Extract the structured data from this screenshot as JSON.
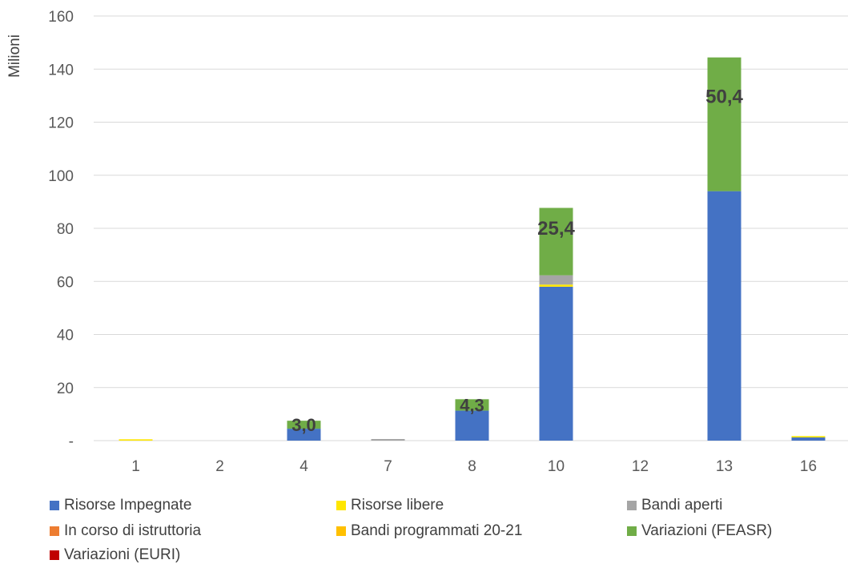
{
  "chart_data": {
    "type": "bar",
    "stacked": true,
    "ylabel": "Milioni",
    "xlabel": "",
    "ylim": [
      0,
      160
    ],
    "yticks": [
      {
        "value": 0,
        "label": "-"
      },
      {
        "value": 20,
        "label": "20"
      },
      {
        "value": 40,
        "label": "40"
      },
      {
        "value": 60,
        "label": "60"
      },
      {
        "value": 80,
        "label": "80"
      },
      {
        "value": 100,
        "label": "100"
      },
      {
        "value": 120,
        "label": "120"
      },
      {
        "value": 140,
        "label": "140"
      },
      {
        "value": 160,
        "label": "160"
      }
    ],
    "grid": true,
    "legend_position": "bottom",
    "categories": [
      "1",
      "2",
      "4",
      "7",
      "8",
      "10",
      "12",
      "13",
      "16"
    ],
    "series": [
      {
        "name": "Risorse Impegnate",
        "color": "#4472C4",
        "values": [
          0,
          0,
          4.5,
          0,
          11.3,
          58.0,
          0,
          94.0,
          1.2
        ]
      },
      {
        "name": "Risorse libere",
        "color": "#FFE600",
        "values": [
          0.5,
          0,
          0,
          0,
          0,
          0.8,
          0,
          0,
          0.5
        ]
      },
      {
        "name": "Bandi aperti",
        "color": "#A5A5A5",
        "values": [
          0,
          0,
          0,
          0.6,
          0,
          3.5,
          0,
          0,
          0
        ]
      },
      {
        "name": "In corso di istruttoria",
        "color": "#ED7D31",
        "values": [
          0,
          0,
          0,
          0,
          0,
          0,
          0,
          0,
          0
        ]
      },
      {
        "name": "Bandi programmati 20-21",
        "color": "#FFC000",
        "values": [
          0,
          0,
          0,
          0,
          0,
          0,
          0,
          0,
          0
        ]
      },
      {
        "name": "Variazioni  (FEASR)",
        "color": "#70AD47",
        "values": [
          0,
          0,
          3.0,
          0,
          4.3,
          25.4,
          0,
          50.4,
          0
        ]
      },
      {
        "name": "Variazioni (EURI)",
        "color": "#C00000",
        "values": [
          0,
          0,
          0,
          0,
          0,
          0,
          0,
          0,
          0
        ]
      }
    ],
    "data_labels": [
      {
        "category": "4",
        "series": "Variazioni  (FEASR)",
        "text": "3,0"
      },
      {
        "category": "8",
        "series": "Variazioni  (FEASR)",
        "text": "4,3"
      },
      {
        "category": "10",
        "series": "Variazioni  (FEASR)",
        "text": "25,4"
      },
      {
        "category": "13",
        "series": "Variazioni  (FEASR)",
        "text": "50,4"
      }
    ]
  }
}
